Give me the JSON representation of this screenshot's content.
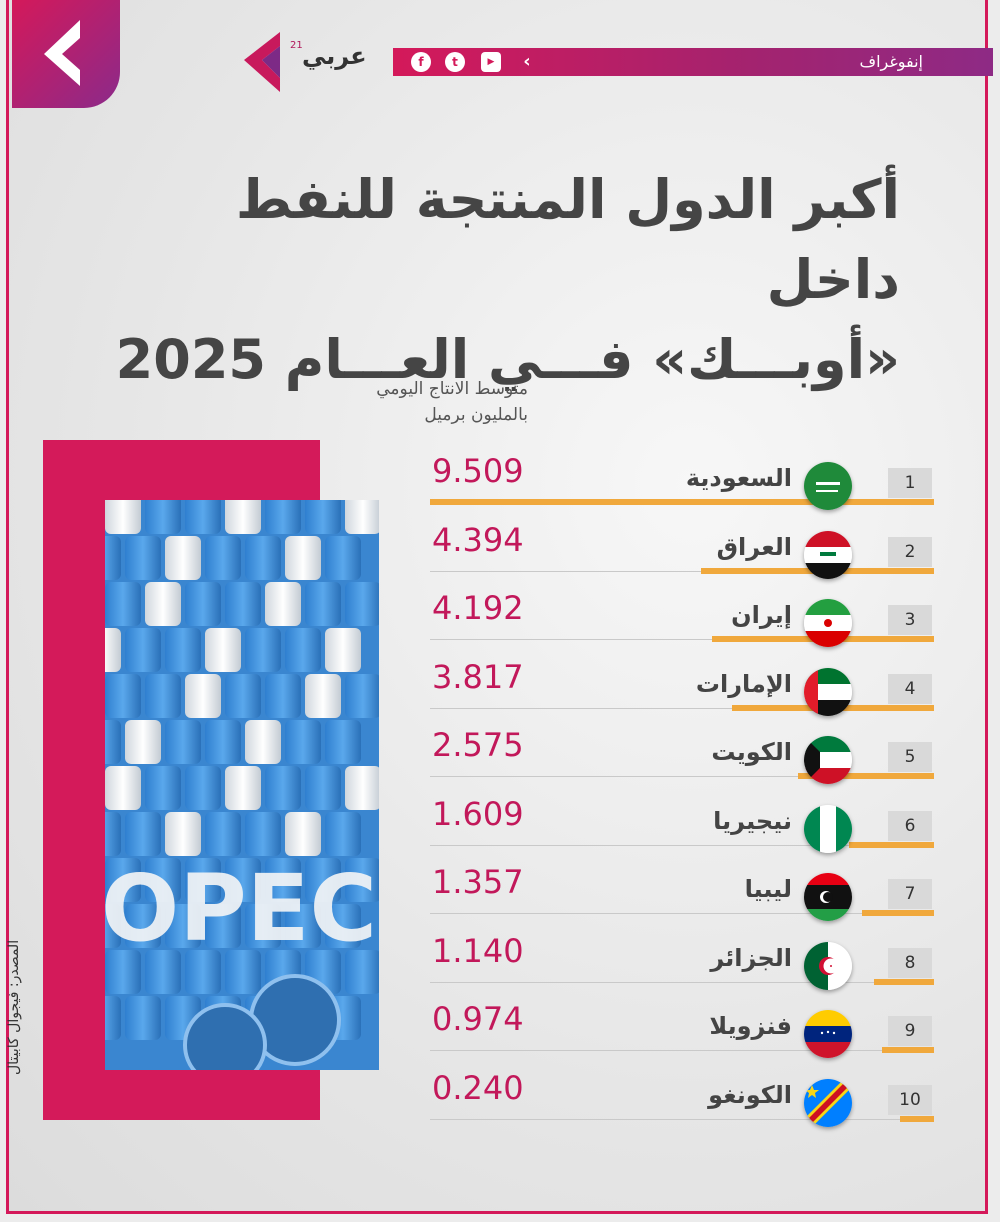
{
  "header": {
    "brand": "عربي",
    "brand_sup": "21",
    "category": "إنفوغراف",
    "social": [
      "f",
      "t",
      "▶",
      "‹"
    ]
  },
  "title_line1": "أكبر الدول المنتجة للنفط داخل",
  "title_line2": "«أوبـــك» فـــي العـــام 2025",
  "unit_line1": "متوسط الانتاج اليومي",
  "unit_line2": "بالمليون برميل",
  "source": "المصدر: فيجوال كابيتال",
  "colors": {
    "accent": "#d41a5a",
    "bar": "#f0a83c",
    "value": "#c2185a"
  },
  "chart_data": {
    "type": "bar",
    "orientation": "horizontal",
    "title": "أكبر الدول المنتجة للنفط داخل «أوبـــك» فـــي العـــام 2025",
    "unit": "متوسط الانتاج اليومي بالمليون برميل",
    "xlim": [
      0,
      9.509
    ],
    "items": [
      {
        "rank": "1",
        "country": "السعودية",
        "value": 9.509,
        "label": "9.509",
        "flag": "saudi-arabia"
      },
      {
        "rank": "2",
        "country": "العراق",
        "value": 4.394,
        "label": "4.394",
        "flag": "iraq"
      },
      {
        "rank": "3",
        "country": "إيران",
        "value": 4.192,
        "label": "4.192",
        "flag": "iran"
      },
      {
        "rank": "4",
        "country": "الإمارات",
        "value": 3.817,
        "label": "3.817",
        "flag": "uae"
      },
      {
        "rank": "5",
        "country": "الكويت",
        "value": 2.575,
        "label": "2.575",
        "flag": "kuwait"
      },
      {
        "rank": "6",
        "country": "نيجيريا",
        "value": 1.609,
        "label": "1.609",
        "flag": "nigeria"
      },
      {
        "rank": "7",
        "country": "ليبيا",
        "value": 1.357,
        "label": "1.357",
        "flag": "libya"
      },
      {
        "rank": "8",
        "country": "الجزائر",
        "value": 1.14,
        "label": "1.140",
        "flag": "algeria"
      },
      {
        "rank": "9",
        "country": "فنزويلا",
        "value": 0.974,
        "label": "0.974",
        "flag": "venezuela"
      },
      {
        "rank": "10",
        "country": "الكونغو",
        "value": 0.24,
        "label": "0.240",
        "flag": "congo"
      }
    ]
  }
}
